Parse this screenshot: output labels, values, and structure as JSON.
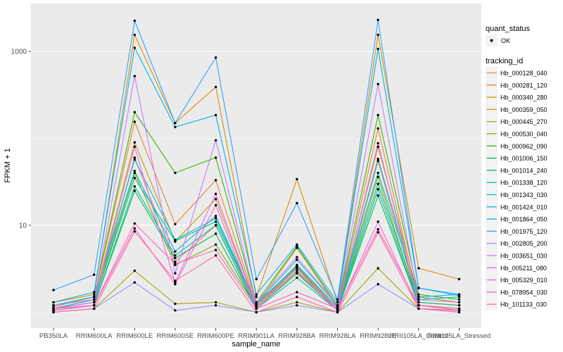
{
  "chart_data": {
    "type": "line",
    "title": "",
    "xlabel": "sample_name",
    "ylabel": "FPKM + 1",
    "y_scale": "log10",
    "ylim": [
      0.66,
      3550
    ],
    "grid": "on",
    "legend_position": "right",
    "y_ticks": [
      {
        "label": "10",
        "value": 10
      },
      {
        "label": "1000",
        "value": 1000
      }
    ],
    "y_gridlines": {
      "major": [
        10,
        1000
      ],
      "minor": [
        1,
        100
      ]
    },
    "categories": [
      "PB350LA",
      "RRIM600LA",
      "RRIM600LE",
      "RRIM600SE",
      "RRIM600PE",
      "RRIM901LA",
      "RRIM928BA",
      "RRIM928LA",
      "RRIM928LE",
      "RRII105LA_Control",
      "RRII105LA_Stressed"
    ],
    "series": [
      {
        "name": "Hb_000128_040",
        "color": "#F8766D",
        "values": [
          1.05,
          1.2,
          60,
          3.8,
          10,
          1.15,
          3.2,
          1.05,
          55,
          1.2,
          1.05
        ]
      },
      {
        "name": "Hb_000281_120",
        "color": "#EA8331",
        "values": [
          1.15,
          1.5,
          155,
          10.3,
          33,
          1.25,
          3.4,
          1.15,
          130,
          1.3,
          1.2
        ]
      },
      {
        "name": "Hb_000340_280",
        "color": "#D89000",
        "values": [
          1.3,
          1.6,
          1550,
          150,
          390,
          1.5,
          34,
          1.3,
          1550,
          3.2,
          2.4
        ]
      },
      {
        "name": "Hb_000359_050",
        "color": "#C09B00",
        "values": [
          1.1,
          1.4,
          90,
          6.5,
          20,
          1.2,
          5.5,
          1.15,
          80,
          1.5,
          1.3
        ]
      },
      {
        "name": "Hb_000445_270",
        "color": "#A3A500",
        "values": [
          1.0,
          1.1,
          3.0,
          1.25,
          1.3,
          1.0,
          1.3,
          1.0,
          3.2,
          1.1,
          1.05
        ]
      },
      {
        "name": "Hb_000530_040",
        "color": "#7CAE00",
        "values": [
          1.1,
          1.3,
          40,
          3.5,
          6.0,
          1.15,
          3.0,
          1.1,
          36,
          1.2,
          1.1
        ]
      },
      {
        "name": "Hb_000962_090",
        "color": "#39B600",
        "values": [
          1.2,
          1.5,
          200,
          40,
          60,
          1.3,
          5.7,
          1.2,
          185,
          1.6,
          1.4
        ]
      },
      {
        "name": "Hb_001006_150",
        "color": "#00BB4E",
        "values": [
          1.05,
          1.2,
          25,
          4.2,
          8.0,
          1.1,
          2.8,
          1.05,
          22,
          1.2,
          1.1
        ]
      },
      {
        "name": "Hb_001014_240",
        "color": "#00BF7D",
        "values": [
          1.1,
          1.3,
          35,
          6.6,
          11,
          1.2,
          3.3,
          1.1,
          30,
          1.3,
          1.2
        ]
      },
      {
        "name": "Hb_001338_120",
        "color": "#00C1A3",
        "values": [
          1.05,
          1.2,
          28,
          4.5,
          10,
          1.1,
          2.5,
          1.05,
          26,
          1.2,
          1.1
        ]
      },
      {
        "name": "Hb_001343_030",
        "color": "#00BFC4",
        "values": [
          1.1,
          1.4,
          57,
          6.8,
          12,
          1.2,
          3.5,
          1.15,
          58,
          1.4,
          1.5
        ]
      },
      {
        "name": "Hb_001424_010",
        "color": "#00BAE0",
        "values": [
          1.2,
          1.5,
          42,
          5.0,
          12.8,
          1.25,
          4.0,
          1.2,
          40,
          1.5,
          1.6
        ]
      },
      {
        "name": "Hb_001864_050",
        "color": "#00B0F6",
        "values": [
          1.3,
          1.7,
          1100,
          135,
          185,
          1.6,
          6.0,
          1.3,
          1070,
          1.9,
          1.6
        ]
      },
      {
        "name": "Hb_001975_120",
        "color": "#35A2FF",
        "values": [
          1.8,
          2.7,
          2250,
          150,
          850,
          2.4,
          18,
          1.4,
          2300,
          1.9,
          1.55
        ]
      },
      {
        "name": "Hb_002805_200",
        "color": "#9590FF",
        "values": [
          1.0,
          1.1,
          2.2,
          1.05,
          1.2,
          1.0,
          1.2,
          1.0,
          2.1,
          1.1,
          1.0
        ]
      },
      {
        "name": "Hb_003651_030",
        "color": "#C77CFF",
        "values": [
          1.2,
          1.4,
          520,
          2.8,
          95,
          1.3,
          4.3,
          1.2,
          420,
          1.4,
          1.3
        ]
      },
      {
        "name": "Hb_005211_080",
        "color": "#E76BF3",
        "values": [
          1.1,
          1.3,
          80,
          2.2,
          23,
          1.2,
          3.2,
          1.1,
          88,
          1.2,
          1.1
        ]
      },
      {
        "name": "Hb_005329_010",
        "color": "#FA62DB",
        "values": [
          1.05,
          1.2,
          9.2,
          2.1,
          17,
          1.1,
          2.9,
          1.05,
          11,
          1.1,
          1.05
        ]
      },
      {
        "name": "Hb_078954_030",
        "color": "#FF62BC",
        "values": [
          1.1,
          1.2,
          10.5,
          3.6,
          5.2,
          1.1,
          1.7,
          1.1,
          9.0,
          1.2,
          1.1
        ]
      },
      {
        "name": "Hb_101133_030",
        "color": "#FF6A98",
        "values": [
          1.0,
          1.1,
          8.5,
          2.3,
          4.5,
          1.0,
          1.5,
          1.0,
          8.3,
          1.1,
          1.0
        ]
      }
    ],
    "legend": {
      "quant_status": {
        "title": "quant_status",
        "items": [
          {
            "label": "OK",
            "marker": "point",
            "color": "#000000"
          }
        ]
      },
      "tracking_id": {
        "title": "tracking_id"
      }
    },
    "colors": {
      "panel_bg": "#EBEBEB",
      "grid": "#FFFFFF",
      "tick_text": "#4D4D4D",
      "tick_mark": "#333333",
      "point": "#000000",
      "legend_key_bg": "#F2F2F2"
    }
  }
}
